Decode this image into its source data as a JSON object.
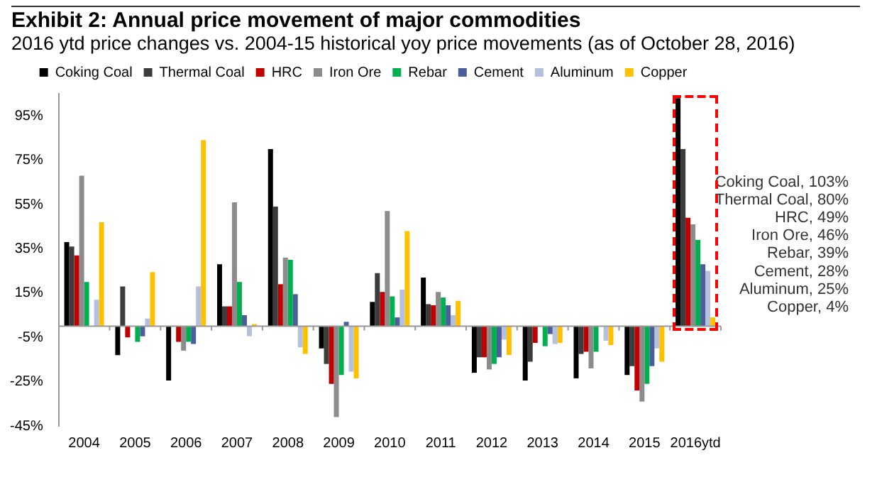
{
  "chart_data": {
    "type": "bar",
    "title": "Exhibit 2: Annual price movement of major commodities",
    "subtitle": "2016 ytd price changes vs. 2004-15 historical yoy price movements (as of October 28, 2016)",
    "categories": [
      "2004",
      "2005",
      "2006",
      "2007",
      "2008",
      "2009",
      "2010",
      "2011",
      "2012",
      "2013",
      "2014",
      "2015",
      "2016ytd"
    ],
    "series": [
      {
        "name": "Coking Coal",
        "color": "#000000",
        "values": [
          38,
          -13,
          -24.5,
          28,
          80,
          -10,
          11,
          22,
          -21,
          -24.5,
          -23.5,
          -22,
          103
        ]
      },
      {
        "name": "Thermal Coal",
        "color": "#3c3c3c",
        "values": [
          36,
          18,
          null,
          9,
          54,
          -17,
          24,
          10,
          -14,
          -16,
          -12.5,
          -18,
          80
        ]
      },
      {
        "name": "HRC",
        "color": "#c00000",
        "values": [
          32,
          -5,
          -7,
          9,
          19,
          -26,
          15.5,
          9.5,
          -14,
          -7.5,
          -11.5,
          -29,
          49
        ]
      },
      {
        "name": "Iron Ore",
        "color": "#8c8c8c",
        "values": [
          68,
          null,
          -11,
          56,
          31,
          -41,
          52,
          15.5,
          -19.5,
          null,
          -19,
          -34,
          46
        ]
      },
      {
        "name": "Rebar",
        "color": "#00b050",
        "values": [
          20,
          -7,
          -7,
          20,
          30,
          -22,
          13.5,
          13,
          -17,
          -9,
          -11.5,
          -26,
          39
        ]
      },
      {
        "name": "Cement",
        "color": "#4a5f9a",
        "values": [
          null,
          -4.5,
          -8,
          5,
          14.5,
          2,
          4,
          9.5,
          -14,
          -3.5,
          null,
          -18,
          28
        ]
      },
      {
        "name": "Aluminum",
        "color": "#b4c0dc",
        "values": [
          12,
          3.5,
          18,
          -4.5,
          -9.5,
          -20.5,
          16.5,
          5,
          -6,
          -8,
          -6.5,
          -10,
          25
        ]
      },
      {
        "name": "Copper",
        "color": "#ffc000",
        "values": [
          47,
          24.5,
          84,
          1,
          -12.5,
          -23.5,
          43,
          11.5,
          -13,
          -7.5,
          -8.5,
          -16,
          4
        ]
      }
    ],
    "ylim": [
      -45,
      105
    ],
    "yticks": [
      {
        "value": -45,
        "label": "-45%"
      },
      {
        "value": -25,
        "label": "-25%"
      },
      {
        "value": -5,
        "label": "-5%"
      },
      {
        "value": 15,
        "label": "15%"
      },
      {
        "value": 35,
        "label": "35%"
      },
      {
        "value": 55,
        "label": "55%"
      },
      {
        "value": 75,
        "label": "75%"
      },
      {
        "value": 95,
        "label": "95%"
      }
    ],
    "annotations": [
      "Coking Coal, 103%",
      "Thermal Coal, 80%",
      "HRC, 49%",
      "Iron Ore, 46%",
      "Rebar, 39%",
      "Cement, 28%",
      "Aluminum, 25%",
      "Copper, 4%"
    ],
    "grid": false,
    "legend": "top"
  }
}
